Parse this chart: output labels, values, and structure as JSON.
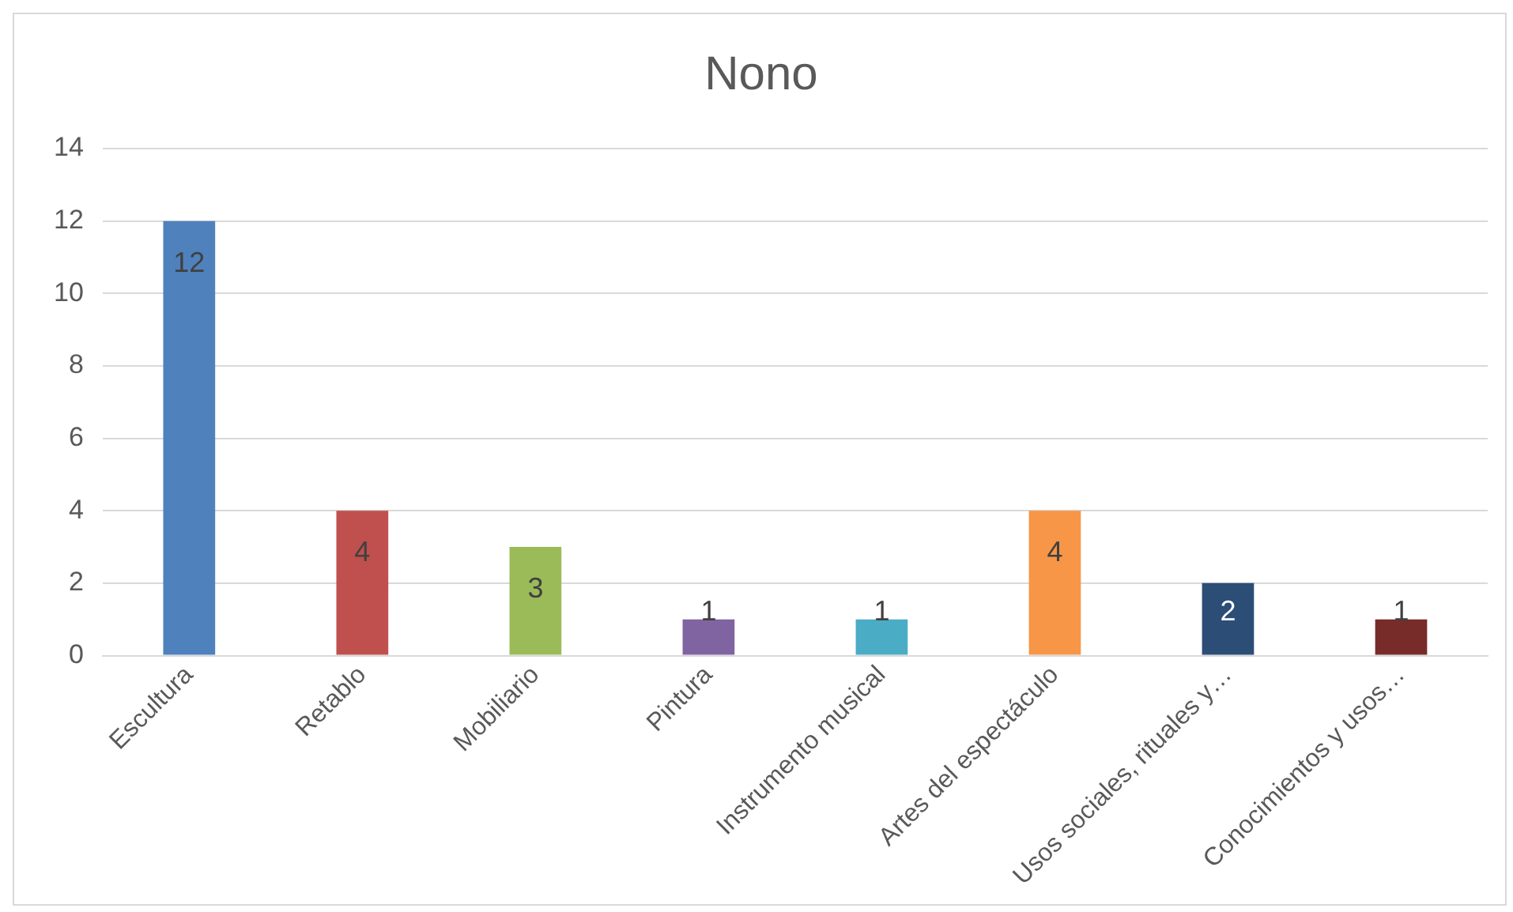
{
  "chart_data": {
    "type": "bar",
    "title": "Nono",
    "categories": [
      "Escultura",
      "Retablo",
      "Mobiliario",
      "Pintura",
      "Instrumento musical",
      "Artes del espectáculo",
      "Usos sociales, rituales y…",
      "Conocimientos y usos…"
    ],
    "values": [
      12,
      4,
      3,
      1,
      1,
      4,
      2,
      1
    ],
    "colors": [
      "#4f81bd",
      "#c0504d",
      "#9bbb59",
      "#8064a2",
      "#4bacc6",
      "#f79646",
      "#2c4d75",
      "#772c2a"
    ],
    "ylim": [
      0,
      14
    ],
    "yticks": [
      0,
      2,
      4,
      6,
      8,
      10,
      12,
      14
    ],
    "grid": "y",
    "data_labels": true,
    "legend": false
  }
}
